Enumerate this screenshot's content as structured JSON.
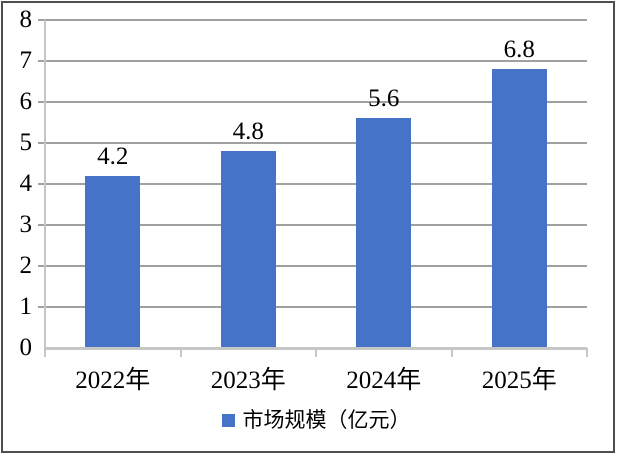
{
  "chart_data": {
    "type": "bar",
    "title": "",
    "categories": [
      "2022年",
      "2023年",
      "2024年",
      "2025年"
    ],
    "values": [
      4.2,
      4.8,
      5.6,
      6.8
    ],
    "data_labels": [
      "4.2",
      "4.8",
      "5.6",
      "6.8"
    ],
    "series": [
      {
        "name": "市场规模（亿元）",
        "values": [
          4.2,
          4.8,
          5.6,
          6.8
        ]
      }
    ],
    "legend": {
      "label": "市场规模（亿元）",
      "position": "bottom",
      "marker": "square"
    },
    "y_axis": {
      "min": 0,
      "max": 8,
      "tick_interval": 1,
      "tick_labels": [
        "0",
        "1",
        "2",
        "3",
        "4",
        "5",
        "6",
        "7",
        "8"
      ]
    },
    "x_axis": {
      "tick_labels": [
        "2022年",
        "2023年",
        "2024年",
        "2025年"
      ]
    },
    "grid": {
      "horizontal": true,
      "vertical": false
    },
    "colors": {
      "bar": "#4573C8",
      "gridline": "#a0a0a0",
      "axis": "#c6c6c6",
      "text": "#000000",
      "frame_border": "#4e4e4e",
      "background": "#ffffff"
    }
  }
}
